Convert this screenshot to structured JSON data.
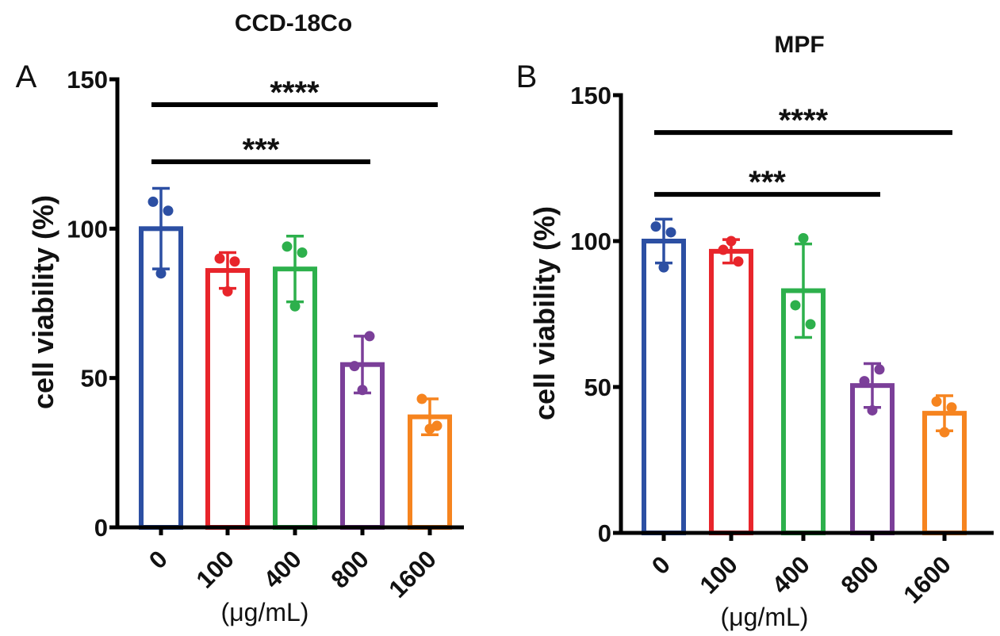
{
  "chart_data": [
    {
      "panel_label": "A",
      "type": "bar",
      "title": "CCD-18Co",
      "ylabel": "cell viability (%)",
      "xlabel": "(μg/mL)",
      "ylim": [
        0,
        150
      ],
      "yticks": [
        0,
        50,
        100,
        150
      ],
      "grid": false,
      "categories": [
        "0",
        "100",
        "400",
        "800",
        "1600"
      ],
      "colors": [
        "#2c4fa3",
        "#e8252b",
        "#2db04c",
        "#7b3f99",
        "#f6841f"
      ],
      "values": [
        100,
        86,
        86.5,
        54.5,
        37
      ],
      "error_sd": [
        13.5,
        6,
        11,
        9.5,
        6
      ],
      "points": [
        [
          109,
          106,
          85
        ],
        [
          90,
          89,
          79
        ],
        [
          94,
          92,
          74
        ],
        [
          54,
          64,
          46
        ],
        [
          43,
          34,
          33
        ]
      ],
      "significance": [
        {
          "from": 0,
          "to": 4,
          "label": "****"
        },
        {
          "from": 0,
          "to": 3,
          "label": "***"
        }
      ]
    },
    {
      "panel_label": "B",
      "type": "bar",
      "title": "MPF",
      "ylabel": "cell viability (%)",
      "xlabel": "(μg/mL)",
      "ylim": [
        0,
        150
      ],
      "yticks": [
        0,
        50,
        100,
        150
      ],
      "grid": false,
      "categories": [
        "0",
        "100",
        "400",
        "800",
        "1600"
      ],
      "colors": [
        "#2c4fa3",
        "#e8252b",
        "#2db04c",
        "#7b3f99",
        "#f6841f"
      ],
      "values": [
        100,
        96.5,
        83,
        50.5,
        41
      ],
      "error_sd": [
        7.5,
        4,
        16,
        7.5,
        6
      ],
      "points": [
        [
          105,
          103,
          91
        ],
        [
          97,
          93,
          100
        ],
        [
          78,
          71.5,
          101
        ],
        [
          52,
          56,
          42
        ],
        [
          45,
          43,
          34.5
        ]
      ],
      "significance": [
        {
          "from": 0,
          "to": 4,
          "label": "****"
        },
        {
          "from": 0,
          "to": 3,
          "label": "***"
        }
      ]
    }
  ]
}
